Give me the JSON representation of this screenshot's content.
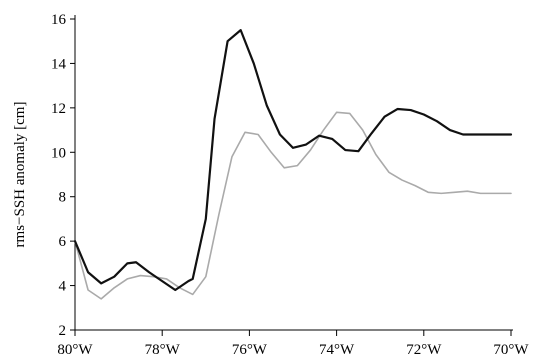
{
  "chart_data": {
    "type": "line",
    "xlabel": "",
    "ylabel": "rms−SSH anomaly [cm]",
    "xlim": [
      -80,
      -70
    ],
    "ylim": [
      2,
      16
    ],
    "x_ticks": [
      {
        "value": -80,
        "label": "80°W"
      },
      {
        "value": -78,
        "label": "78°W"
      },
      {
        "value": -76,
        "label": "76°W"
      },
      {
        "value": -74,
        "label": "74°W"
      },
      {
        "value": -72,
        "label": "72°W"
      },
      {
        "value": -70,
        "label": "70°W"
      }
    ],
    "y_ticks": [
      {
        "value": 2,
        "label": "2"
      },
      {
        "value": 4,
        "label": "4"
      },
      {
        "value": 6,
        "label": "6"
      },
      {
        "value": 8,
        "label": "8"
      },
      {
        "value": 10,
        "label": "10"
      },
      {
        "value": 12,
        "label": "12"
      },
      {
        "value": 14,
        "label": "14"
      },
      {
        "value": 16,
        "label": "16"
      }
    ],
    "grid": false,
    "series": [
      {
        "color": "#111111",
        "x": [
          -80,
          -79.7,
          -79.4,
          -79.1,
          -78.8,
          -78.6,
          -78.3,
          -78.0,
          -77.7,
          -77.4,
          -77.3,
          -77.0,
          -76.8,
          -76.5,
          -76.2,
          -75.9,
          -75.6,
          -75.3,
          -75.0,
          -74.7,
          -74.4,
          -74.1,
          -73.8,
          -73.5,
          -73.2,
          -72.9,
          -72.6,
          -72.3,
          -72.0,
          -71.7,
          -71.4,
          -71.1,
          -70.8,
          -70.5,
          -70.2,
          -70
        ],
        "y": [
          6.0,
          4.6,
          4.1,
          4.4,
          5.0,
          5.05,
          4.6,
          4.2,
          3.8,
          4.2,
          4.3,
          7.0,
          11.5,
          15.0,
          15.5,
          14.0,
          12.1,
          10.8,
          10.2,
          10.35,
          10.75,
          10.6,
          10.1,
          10.05,
          10.85,
          11.6,
          11.95,
          11.9,
          11.7,
          11.4,
          11.0,
          10.8,
          10.8,
          10.8,
          10.8,
          10.8
        ],
        "y_note": ""
      },
      {
        "color": "#aaaaaa",
        "x": [
          -80,
          -79.7,
          -79.4,
          -79.1,
          -78.8,
          -78.5,
          -78.2,
          -77.9,
          -77.6,
          -77.3,
          -77.0,
          -76.7,
          -76.4,
          -76.1,
          -75.8,
          -75.5,
          -75.2,
          -74.9,
          -74.6,
          -74.3,
          -74.0,
          -73.7,
          -73.4,
          -73.1,
          -72.8,
          -72.5,
          -72.2,
          -71.9,
          -71.6,
          -71.3,
          -71.0,
          -70.7,
          -70.4,
          -70.1,
          -70
        ],
        "y": [
          6.0,
          3.8,
          3.4,
          3.9,
          4.3,
          4.45,
          4.4,
          4.3,
          3.9,
          3.6,
          4.4,
          7.2,
          9.8,
          10.9,
          10.8,
          10.0,
          9.3,
          9.4,
          10.1,
          11.0,
          11.8,
          11.75,
          11.0,
          9.9,
          9.1,
          8.75,
          8.5,
          8.2,
          8.15,
          8.2,
          8.25,
          8.15,
          8.15,
          8.15,
          8.15
        ]
      }
    ]
  }
}
